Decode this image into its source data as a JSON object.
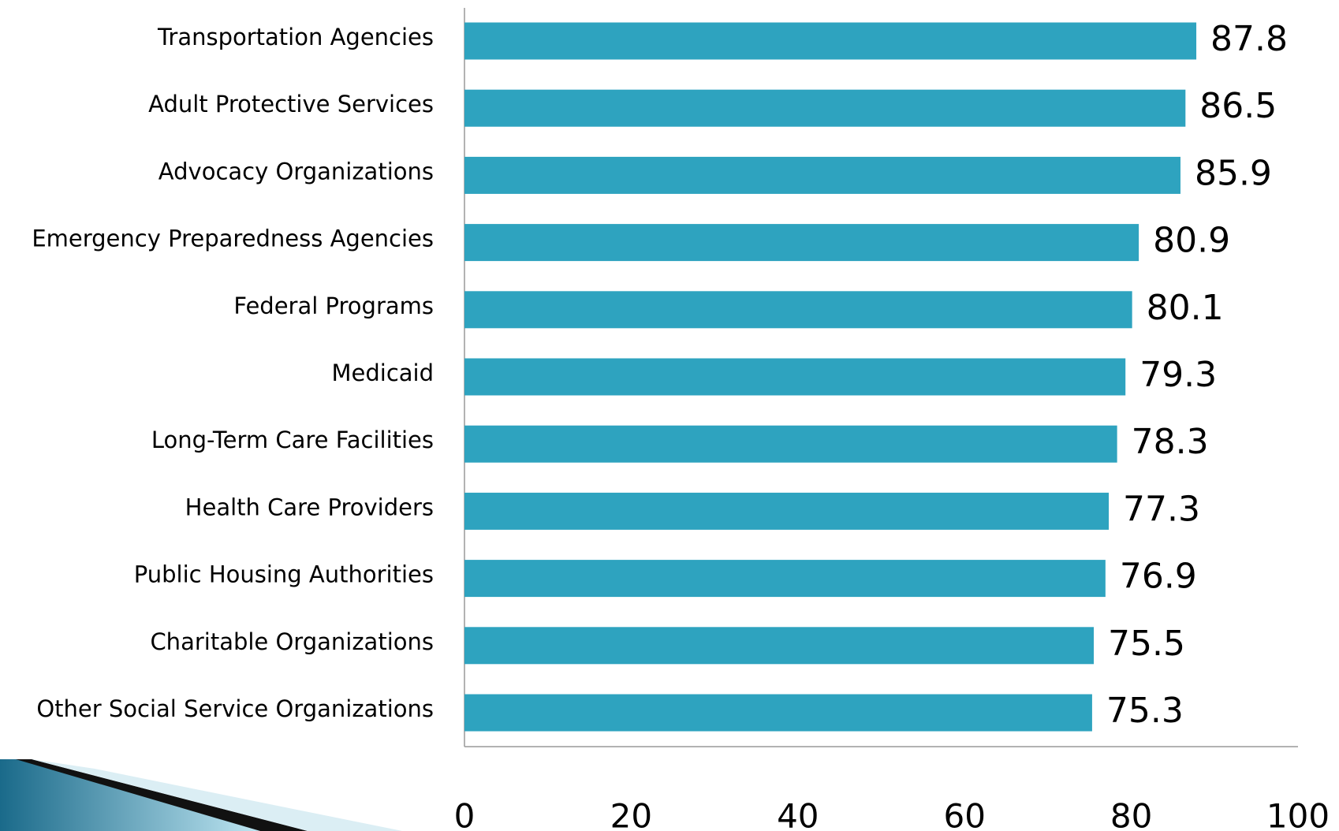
{
  "chart_data": {
    "type": "barh",
    "categories": [
      "Transportation Agencies",
      "Adult Protective Services",
      "Advocacy Organizations",
      "Emergency Preparedness Agencies",
      "Federal Programs",
      "Medicaid",
      "Long-Term Care Facilities",
      "Health Care Providers",
      "Public Housing Authorities",
      "Charitable Organizations",
      "Other Social Service Organizations"
    ],
    "values": [
      87.8,
      86.5,
      85.9,
      80.9,
      80.1,
      79.3,
      78.3,
      77.3,
      76.9,
      75.5,
      75.3
    ],
    "color": "#2ea3bf",
    "xlim": [
      0,
      100
    ],
    "xticks": [
      0,
      20,
      40,
      60,
      80,
      100
    ],
    "grid": false
  }
}
